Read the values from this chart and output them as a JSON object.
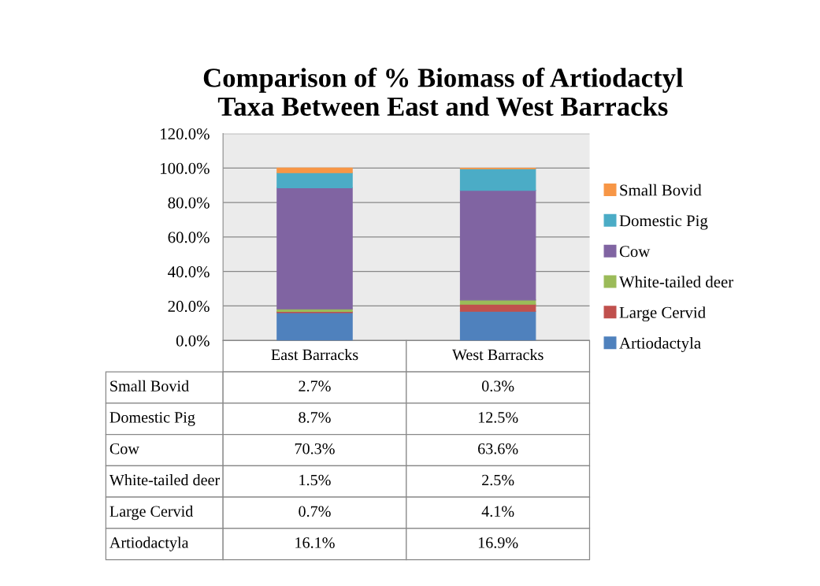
{
  "chart_data": {
    "type": "bar",
    "title": "Comparison of % Biomass of Artiodactyl\nTaxa Between East and West Barracks",
    "categories": [
      "East Barracks",
      "West Barracks"
    ],
    "stacked": true,
    "series": [
      {
        "name": "Artiodactyla",
        "color": "#4f81bd",
        "values": [
          16.1,
          16.9
        ],
        "value_labels": [
          "16.1%",
          "16.9%"
        ]
      },
      {
        "name": "Large Cervid",
        "color": "#c0504d",
        "values": [
          0.7,
          4.1
        ],
        "value_labels": [
          "0.7%",
          "4.1%"
        ]
      },
      {
        "name": "White-tailed deer",
        "color": "#9bbb59",
        "values": [
          1.5,
          2.5
        ],
        "value_labels": [
          "1.5%",
          "2.5%"
        ]
      },
      {
        "name": "Cow",
        "color": "#8064a2",
        "values": [
          70.3,
          63.6
        ],
        "value_labels": [
          "70.3%",
          "63.6%"
        ]
      },
      {
        "name": "Domestic Pig",
        "color": "#4bacc6",
        "values": [
          8.7,
          12.5
        ],
        "value_labels": [
          "8.7%",
          "12.5%"
        ]
      },
      {
        "name": "Small Bovid",
        "color": "#f79646",
        "values": [
          2.7,
          0.3
        ],
        "value_labels": [
          "2.7%",
          "0.3%"
        ]
      }
    ],
    "ylim": [
      0,
      120
    ],
    "yticks": [
      {
        "value": 0,
        "label": "0.0%"
      },
      {
        "value": 20,
        "label": "20.0%"
      },
      {
        "value": 40,
        "label": "40.0%"
      },
      {
        "value": 60,
        "label": "60.0%"
      },
      {
        "value": 80,
        "label": "80.0%"
      },
      {
        "value": 100,
        "label": "100.0%"
      },
      {
        "value": 120,
        "label": "120.0%"
      }
    ],
    "grid": "y",
    "legend": "right"
  }
}
